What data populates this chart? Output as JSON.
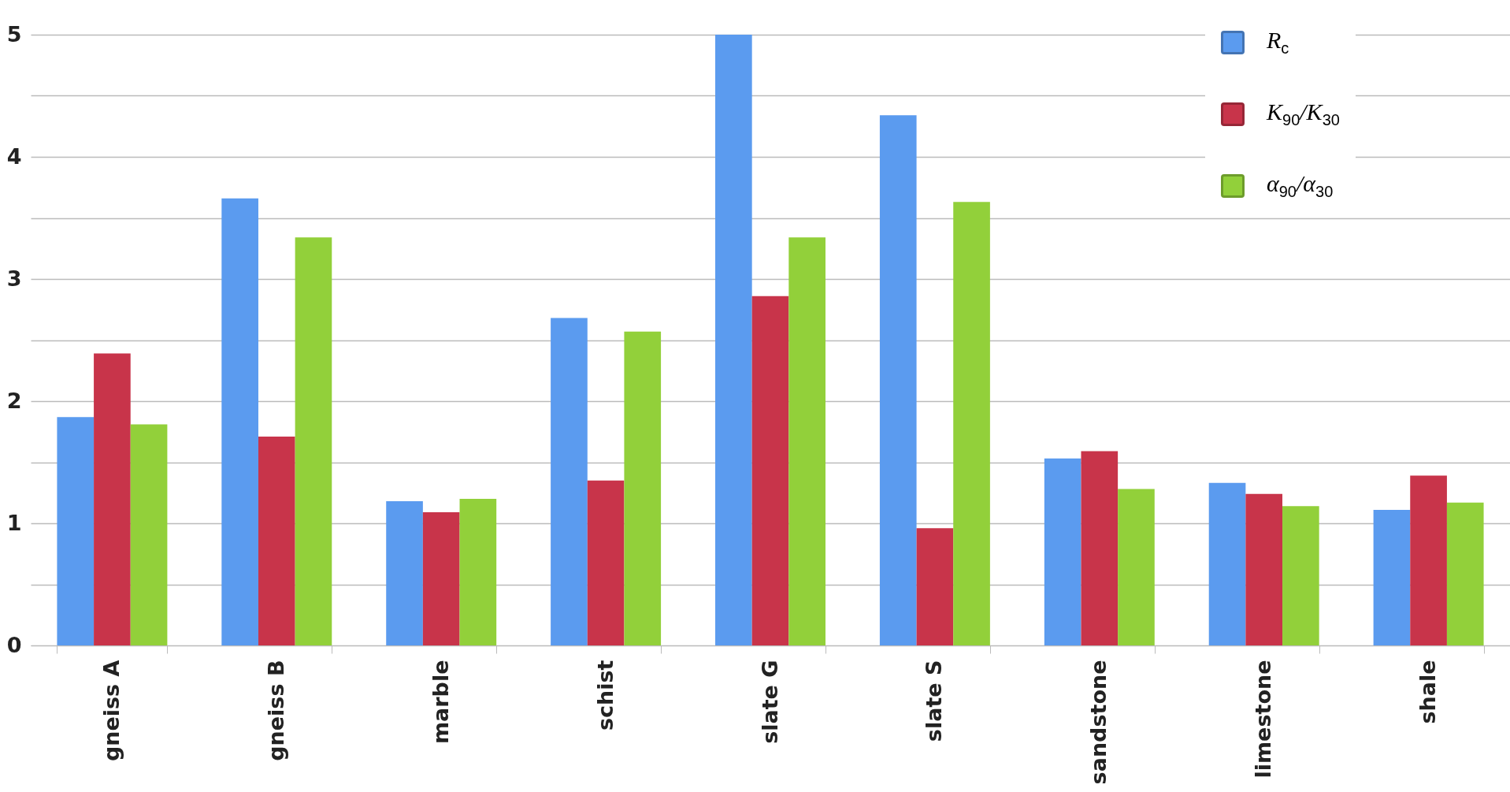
{
  "chart_data": {
    "type": "bar",
    "categories": [
      "gneiss A",
      "gneiss B",
      "marble",
      "schist",
      "slate G",
      "slate S",
      "sandstone",
      "limestone",
      "shale"
    ],
    "series": [
      {
        "name": "R$_{c}$",
        "color": "#5b9bef",
        "values": [
          1.87,
          3.66,
          1.18,
          2.68,
          5.0,
          4.34,
          1.53,
          1.33,
          1.11
        ]
      },
      {
        "name": "K$_{90}$/K$_{30}$",
        "color": "#c8344a",
        "values": [
          2.39,
          1.71,
          1.09,
          1.35,
          2.86,
          0.96,
          1.59,
          1.24,
          1.39
        ]
      },
      {
        "name": "α$_{90}$/α$_{30}$",
        "color": "#92d03a",
        "values": [
          1.81,
          3.34,
          1.2,
          2.57,
          3.34,
          3.63,
          1.28,
          1.14,
          1.17
        ]
      }
    ],
    "ylim": [
      0,
      5
    ],
    "yticks": [
      0,
      {
        "value": 0.5,
        "label": null
      },
      1,
      {
        "value": 1.5,
        "label": null
      },
      2,
      {
        "value": 2.5,
        "label": null
      },
      3,
      {
        "value": 3.5,
        "label": null
      },
      4,
      {
        "value": 4.5,
        "label": null
      },
      5
    ],
    "grid": "y",
    "legend": "top right"
  }
}
